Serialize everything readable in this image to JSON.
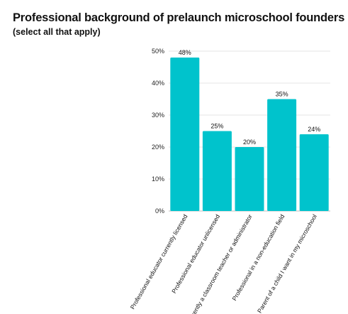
{
  "title": "Professional background of prelaunch microschool founders",
  "subtitle": "(select all that apply)",
  "chart_data": {
    "type": "bar",
    "title": "Professional background of prelaunch microschool founders",
    "subtitle": "(select all that apply)",
    "categories": [
      "Professional educator currently licensed",
      "Professional educator unlicensed",
      "Currently a classroom teacher or administrator",
      "Professional in a non-education field",
      "Parent of a child I want in my microschool"
    ],
    "values": [
      48,
      25,
      20,
      35,
      24
    ],
    "data_labels": [
      "48%",
      "25%",
      "20%",
      "35%",
      "24%"
    ],
    "ylim": [
      0,
      50
    ],
    "yticks": [
      0,
      10,
      20,
      30,
      40,
      50
    ],
    "ytick_labels": [
      "0%",
      "10%",
      "20%",
      "30%",
      "40%",
      "50%"
    ],
    "grid": true,
    "bar_color": "#00c3cc",
    "grid_color": "#e4e4e4"
  }
}
